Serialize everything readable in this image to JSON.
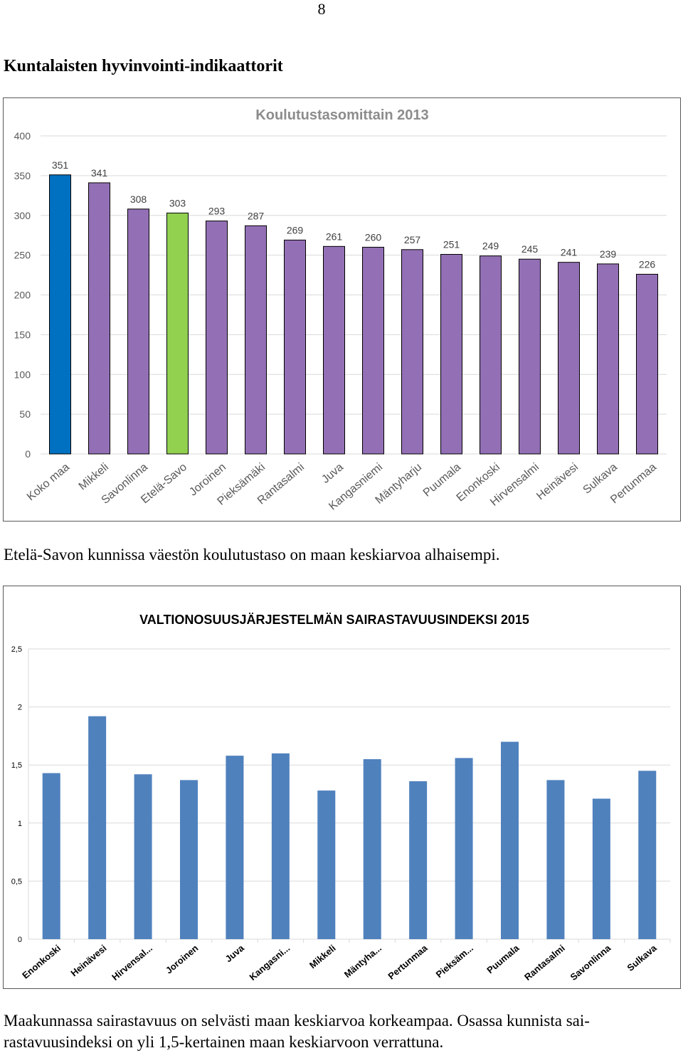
{
  "page_number": "8",
  "section_title": "Kuntalaisten hyvinvointi-indikaattorit",
  "caption_1": "Etelä-Savon kunnissa väestön koulutustaso on maan keskiarvoa alhaisempi.",
  "caption_2": "Maakunnassa sairastavuus on selvästi maan keskiarvoa korkeampaa. Osassa kunnista sairastavuusindeksi on yli 1,5-kertainen maan keskiarvoon verrattuna.",
  "caption_2_parts": [
    "Maakunnassa sairastavuus on selvästi maan keskiarvoa korkeampaa. Osassa kunnista sai-",
    "rastavuusindeksi on yli 1,5-kertainen maan keskiarvoon verrattuna."
  ],
  "chart_data": [
    {
      "type": "bar",
      "title": "Koulutustasomittain 2013",
      "xlabel": "",
      "ylabel": "",
      "ylim": [
        0,
        400
      ],
      "yticks": [
        "0",
        "50",
        "100",
        "150",
        "200",
        "250",
        "300",
        "350",
        "400"
      ],
      "categories": [
        "Koko maa",
        "Mikkeli",
        "Savonlinna",
        "Etelä-Savo",
        "Joroinen",
        "Pieksämäki",
        "Rantasalmi",
        "Juva",
        "Kangasniemi",
        "Mäntyharju",
        "Puumala",
        "Enonkoski",
        "Hirvensalmi",
        "Heinävesi",
        "Sulkava",
        "Pertunmaa"
      ],
      "values": [
        351,
        341,
        308,
        303,
        293,
        287,
        269,
        261,
        260,
        257,
        251,
        249,
        245,
        241,
        239,
        226
      ],
      "value_labels": [
        "351",
        "341",
        "308",
        "303",
        "293",
        "287",
        "269",
        "261",
        "260",
        "257",
        "251",
        "249",
        "245",
        "241",
        "239",
        "226"
      ],
      "bar_colors": [
        "#0070C0",
        "#9370B5",
        "#9370B5",
        "#92D050",
        "#9370B5",
        "#9370B5",
        "#9370B5",
        "#9370B5",
        "#9370B5",
        "#9370B5",
        "#9370B5",
        "#9370B5",
        "#9370B5",
        "#9370B5",
        "#9370B5",
        "#9370B5"
      ],
      "grid": true,
      "legend": "none"
    },
    {
      "type": "bar",
      "title": "VALTIONOSUUSJÄRJESTELMÄN SAIRASTAVUUSINDEKSI 2015",
      "xlabel": "",
      "ylabel": "",
      "ylim": [
        0,
        2.5
      ],
      "yticks": [
        "0",
        "0,5",
        "1",
        "1,5",
        "2",
        "2,5"
      ],
      "categories": [
        "Enonkoski",
        "Heinävesi",
        "Hirvensal...",
        "Joroinen",
        "Juva",
        "Kangasni...",
        "Mikkeli",
        "Mäntyha...",
        "Pertunmaa",
        "Pieksäm...",
        "Puumala",
        "Rantasalmi",
        "Savonlinna",
        "Sulkava"
      ],
      "values": [
        1.43,
        1.92,
        1.42,
        1.37,
        1.58,
        1.6,
        1.28,
        1.55,
        1.36,
        1.56,
        1.7,
        1.37,
        1.21,
        1.45
      ],
      "bar_color": "#4F81BD",
      "grid": true,
      "legend": "none"
    }
  ]
}
